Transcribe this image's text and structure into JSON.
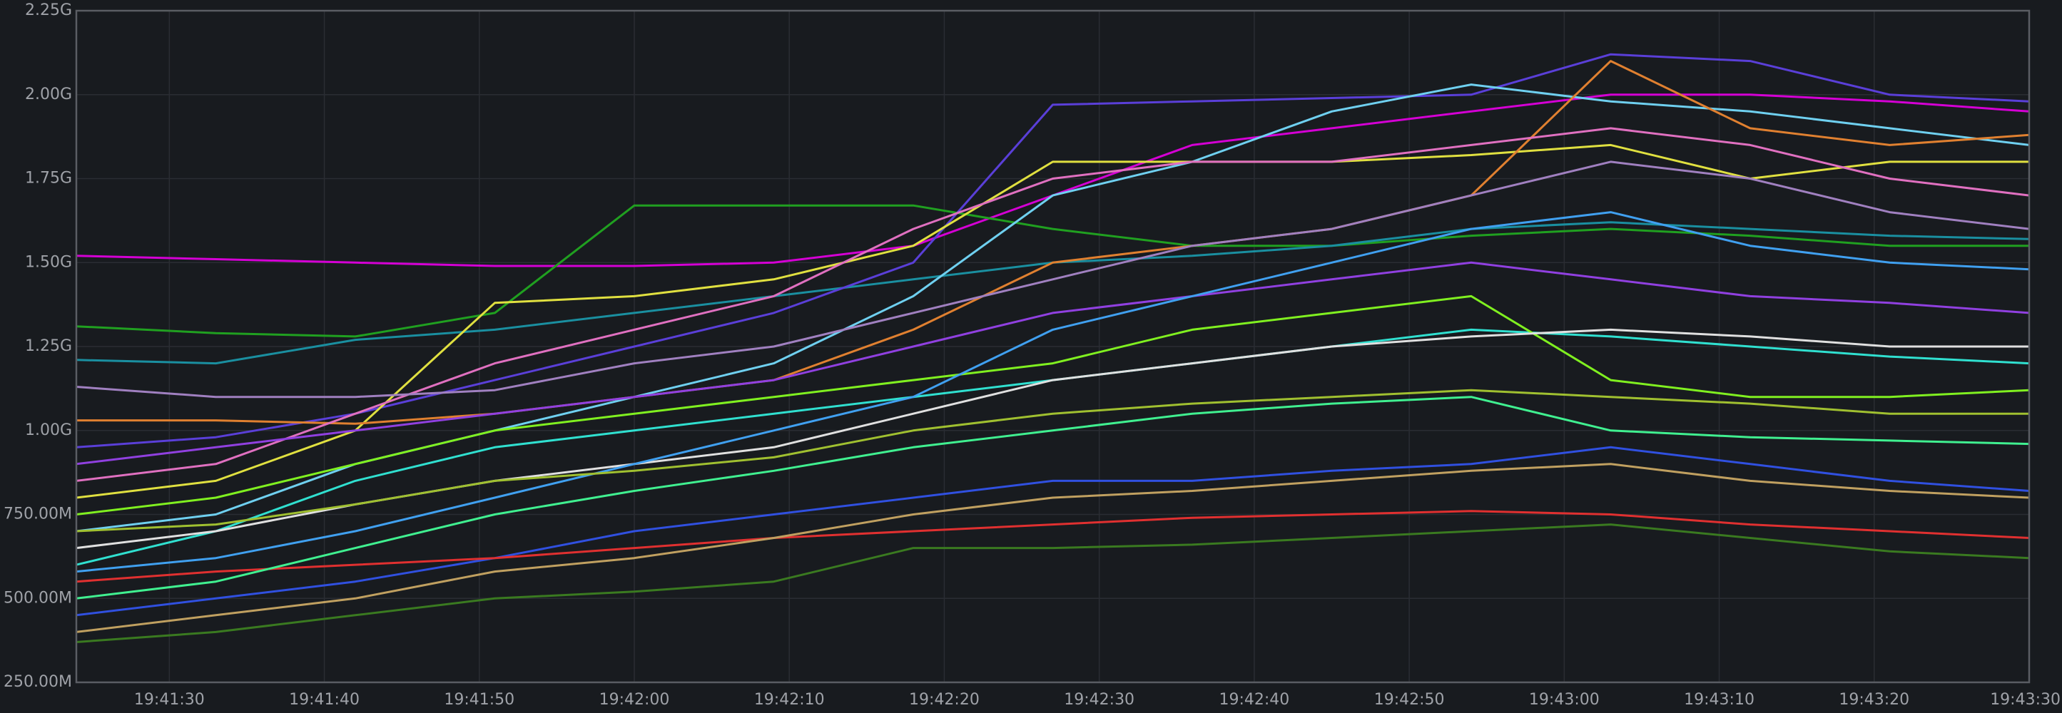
{
  "chart_data": {
    "type": "line",
    "x": [
      "19:41:24",
      "19:41:33",
      "19:41:42",
      "19:41:51",
      "19:42:00",
      "19:42:09",
      "19:42:18",
      "19:42:27",
      "19:42:36",
      "19:42:45",
      "19:42:54",
      "19:43:03",
      "19:43:12",
      "19:43:21",
      "19:43:30"
    ],
    "xlim": [
      "19:41:24",
      "19:43:30"
    ],
    "xticks": [
      "19:41:30",
      "19:41:40",
      "19:41:50",
      "19:42:00",
      "19:42:10",
      "19:42:20",
      "19:42:30",
      "19:42:40",
      "19:42:50",
      "19:43:00",
      "19:43:10",
      "19:43:20",
      "19:43:30"
    ],
    "ylim": [
      250000000,
      2250000000
    ],
    "yticks": [
      {
        "value": 250000000,
        "label": "250.00M"
      },
      {
        "value": 500000000,
        "label": "500.00M"
      },
      {
        "value": 750000000,
        "label": "750.00M"
      },
      {
        "value": 1000000000,
        "label": "1.00G"
      },
      {
        "value": 1250000000,
        "label": "1.25G"
      },
      {
        "value": 1500000000,
        "label": "1.50G"
      },
      {
        "value": 1750000000,
        "label": "1.75G"
      },
      {
        "value": 2000000000,
        "label": "2.00G"
      },
      {
        "value": 2250000000,
        "label": "2.25G"
      }
    ],
    "grid": true,
    "series": [
      {
        "color": "#d400d4",
        "values": [
          1520000000,
          1510000000,
          1500000000,
          1490000000,
          1490000000,
          1500000000,
          1550000000,
          1700000000,
          1850000000,
          1900000000,
          1950000000,
          2000000000,
          2000000000,
          1980000000,
          1950000000
        ]
      },
      {
        "color": "#20a020",
        "values": [
          1310000000,
          1290000000,
          1280000000,
          1350000000,
          1670000000,
          1670000000,
          1670000000,
          1600000000,
          1550000000,
          1550000000,
          1580000000,
          1600000000,
          1580000000,
          1550000000,
          1550000000
        ]
      },
      {
        "color": "#1a8fa0",
        "values": [
          1210000000,
          1200000000,
          1270000000,
          1300000000,
          1350000000,
          1400000000,
          1450000000,
          1500000000,
          1520000000,
          1550000000,
          1600000000,
          1620000000,
          1600000000,
          1580000000,
          1570000000
        ]
      },
      {
        "color": "#5a3fd8",
        "values": [
          950000000,
          980000000,
          1050000000,
          1150000000,
          1250000000,
          1350000000,
          1500000000,
          1970000000,
          1980000000,
          1990000000,
          2000000000,
          2120000000,
          2100000000,
          2000000000,
          1980000000
        ]
      },
      {
        "color": "#6fd0f0",
        "values": [
          700000000,
          750000000,
          900000000,
          1000000000,
          1100000000,
          1200000000,
          1400000000,
          1700000000,
          1800000000,
          1950000000,
          2030000000,
          1980000000,
          1950000000,
          1900000000,
          1850000000
        ]
      },
      {
        "color": "#e0e040",
        "values": [
          800000000,
          850000000,
          1000000000,
          1380000000,
          1400000000,
          1450000000,
          1550000000,
          1800000000,
          1800000000,
          1800000000,
          1820000000,
          1850000000,
          1750000000,
          1800000000,
          1800000000
        ]
      },
      {
        "color": "#e08030",
        "values": [
          1030000000,
          1030000000,
          1020000000,
          1050000000,
          1100000000,
          1150000000,
          1300000000,
          1500000000,
          1550000000,
          1600000000,
          1700000000,
          2100000000,
          1900000000,
          1850000000,
          1880000000
        ]
      },
      {
        "color": "#3a7a20",
        "values": [
          370000000,
          400000000,
          450000000,
          500000000,
          520000000,
          550000000,
          650000000,
          650000000,
          660000000,
          680000000,
          700000000,
          720000000,
          680000000,
          640000000,
          620000000
        ]
      },
      {
        "color": "#3050e0",
        "values": [
          450000000,
          500000000,
          550000000,
          620000000,
          700000000,
          750000000,
          800000000,
          850000000,
          850000000,
          880000000,
          900000000,
          950000000,
          900000000,
          850000000,
          820000000
        ]
      },
      {
        "color": "#30e0d0",
        "values": [
          600000000,
          700000000,
          850000000,
          950000000,
          1000000000,
          1050000000,
          1100000000,
          1150000000,
          1200000000,
          1250000000,
          1300000000,
          1280000000,
          1250000000,
          1220000000,
          1200000000
        ]
      },
      {
        "color": "#80f020",
        "values": [
          750000000,
          800000000,
          900000000,
          1000000000,
          1050000000,
          1100000000,
          1150000000,
          1200000000,
          1300000000,
          1350000000,
          1400000000,
          1150000000,
          1100000000,
          1100000000,
          1120000000
        ]
      },
      {
        "color": "#e03030",
        "values": [
          550000000,
          580000000,
          600000000,
          620000000,
          650000000,
          680000000,
          700000000,
          720000000,
          740000000,
          750000000,
          760000000,
          750000000,
          720000000,
          700000000,
          680000000
        ]
      },
      {
        "color": "#e070c0",
        "values": [
          850000000,
          900000000,
          1050000000,
          1200000000,
          1300000000,
          1400000000,
          1600000000,
          1750000000,
          1800000000,
          1800000000,
          1850000000,
          1900000000,
          1850000000,
          1750000000,
          1700000000
        ]
      },
      {
        "color": "#a080c0",
        "values": [
          1130000000,
          1100000000,
          1100000000,
          1120000000,
          1200000000,
          1250000000,
          1350000000,
          1450000000,
          1550000000,
          1600000000,
          1700000000,
          1800000000,
          1750000000,
          1650000000,
          1600000000
        ]
      },
      {
        "color": "#e0e0e0",
        "values": [
          650000000,
          700000000,
          780000000,
          850000000,
          900000000,
          950000000,
          1050000000,
          1150000000,
          1200000000,
          1250000000,
          1280000000,
          1300000000,
          1280000000,
          1250000000,
          1250000000
        ]
      },
      {
        "color": "#40f090",
        "values": [
          500000000,
          550000000,
          650000000,
          750000000,
          820000000,
          880000000,
          950000000,
          1000000000,
          1050000000,
          1080000000,
          1100000000,
          1000000000,
          980000000,
          970000000,
          960000000
        ]
      },
      {
        "color": "#9040e0",
        "values": [
          900000000,
          950000000,
          1000000000,
          1050000000,
          1100000000,
          1150000000,
          1250000000,
          1350000000,
          1400000000,
          1450000000,
          1500000000,
          1450000000,
          1400000000,
          1380000000,
          1350000000
        ]
      },
      {
        "color": "#c0a060",
        "values": [
          400000000,
          450000000,
          500000000,
          580000000,
          620000000,
          680000000,
          750000000,
          800000000,
          820000000,
          850000000,
          880000000,
          900000000,
          850000000,
          820000000,
          800000000
        ]
      },
      {
        "color": "#40a0f0",
        "values": [
          580000000,
          620000000,
          700000000,
          800000000,
          900000000,
          1000000000,
          1100000000,
          1300000000,
          1400000000,
          1500000000,
          1600000000,
          1650000000,
          1550000000,
          1500000000,
          1480000000
        ]
      },
      {
        "color": "#a0c030",
        "values": [
          700000000,
          720000000,
          780000000,
          850000000,
          880000000,
          920000000,
          1000000000,
          1050000000,
          1080000000,
          1100000000,
          1120000000,
          1100000000,
          1080000000,
          1050000000,
          1050000000
        ]
      }
    ]
  }
}
